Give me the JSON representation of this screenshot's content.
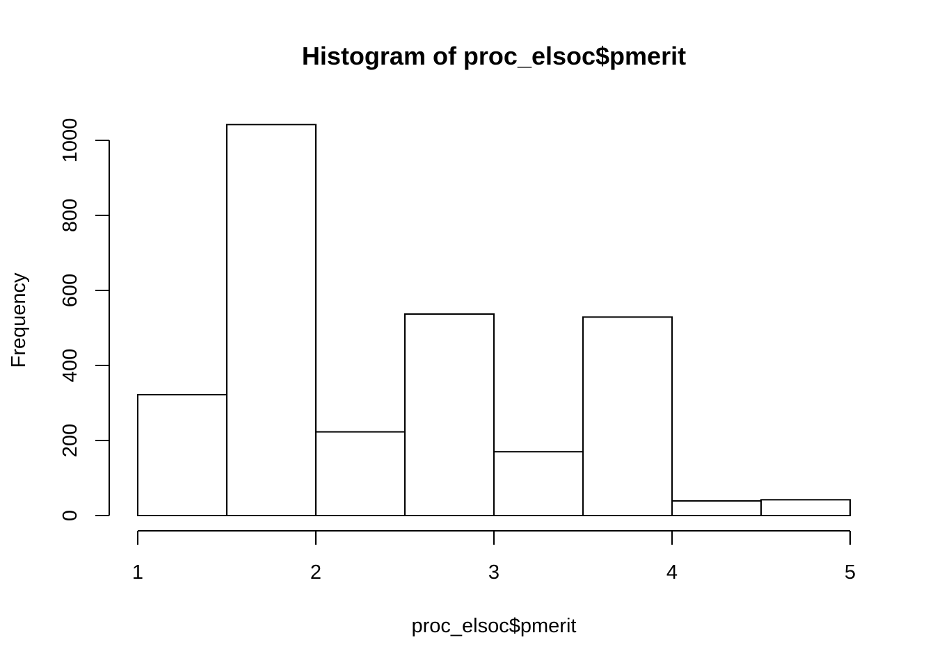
{
  "chart_data": {
    "type": "bar",
    "title": "Histogram of proc_elsoc$pmerit",
    "xlabel": "proc_elsoc$pmerit",
    "ylabel": "Frequency",
    "bins": [
      {
        "x0": 1.0,
        "x1": 1.5,
        "count": 322
      },
      {
        "x0": 1.5,
        "x1": 2.0,
        "count": 1042
      },
      {
        "x0": 2.0,
        "x1": 2.5,
        "count": 223
      },
      {
        "x0": 2.5,
        "x1": 3.0,
        "count": 537
      },
      {
        "x0": 3.0,
        "x1": 3.5,
        "count": 170
      },
      {
        "x0": 3.5,
        "x1": 4.0,
        "count": 529
      },
      {
        "x0": 4.0,
        "x1": 4.5,
        "count": 39
      },
      {
        "x0": 4.5,
        "x1": 5.0,
        "count": 42
      }
    ],
    "xlim": [
      1,
      5
    ],
    "ylim": [
      0,
      1042
    ],
    "xticks": [
      "1",
      "2",
      "3",
      "4",
      "5"
    ],
    "yticks": [
      "0",
      "200",
      "400",
      "600",
      "800",
      "1000"
    ],
    "grid": false,
    "legend": "none"
  }
}
